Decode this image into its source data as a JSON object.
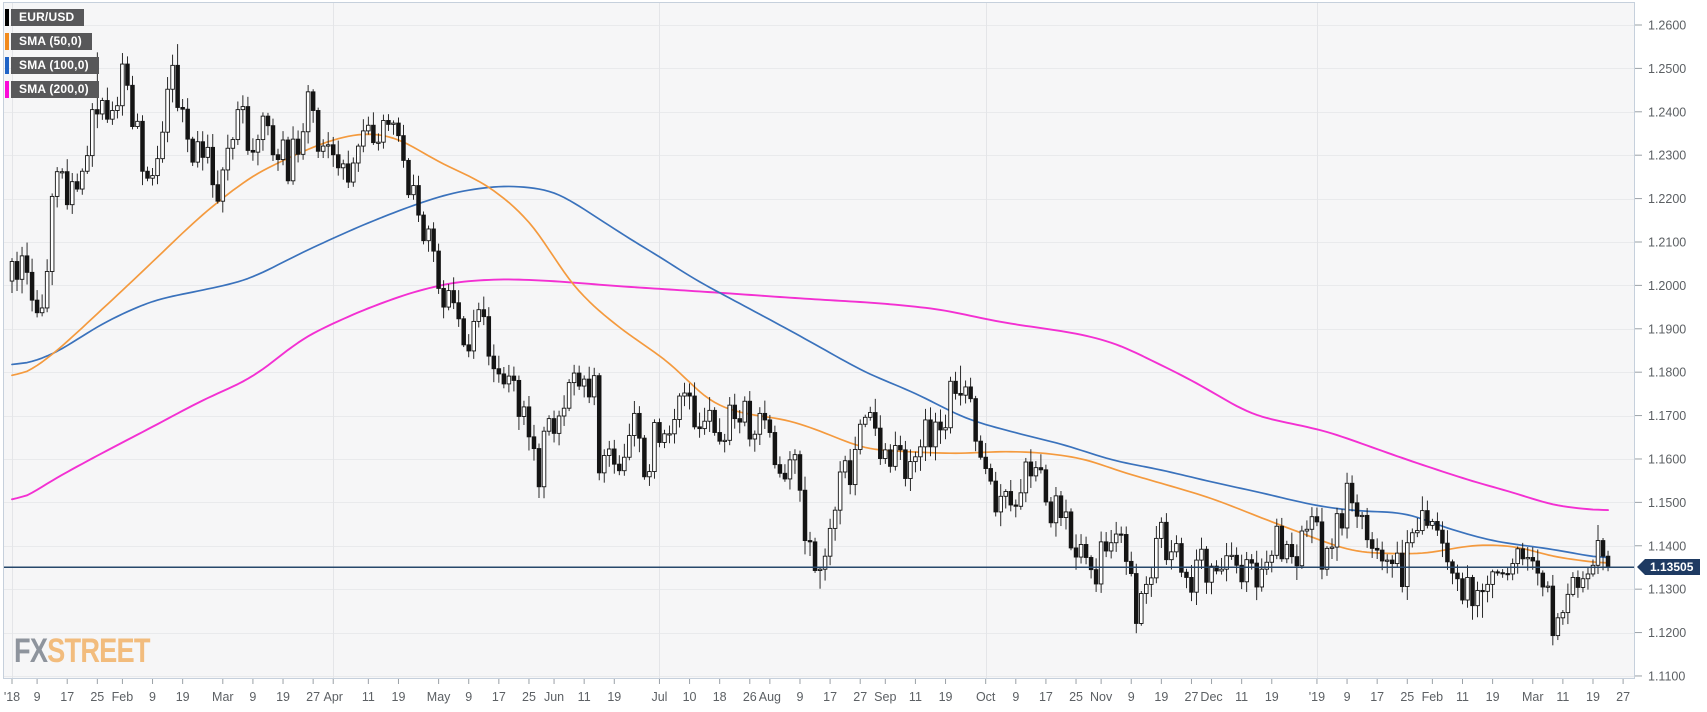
{
  "legend": {
    "items": [
      {
        "label": "EUR/USD",
        "color": "#000000"
      },
      {
        "label": "SMA (50,0)",
        "color": "#f28a1c"
      },
      {
        "label": "SMA (100,0)",
        "color": "#1f63c6"
      },
      {
        "label": "SMA (200,0)",
        "color": "#fb0bd8"
      }
    ]
  },
  "watermark": {
    "fx": "FX",
    "street": "STREET"
  },
  "price_scale": {
    "current_price_label": "1.13505",
    "ticks": [
      "1.2600",
      "1.2500",
      "1.2400",
      "1.2300",
      "1.2200",
      "1.2100",
      "1.2000",
      "1.1900",
      "1.1800",
      "1.1700",
      "1.1600",
      "1.1500",
      "1.1400",
      "1.1300",
      "1.1200",
      "1.1100"
    ]
  },
  "time_scale": {
    "labels": [
      {
        "text": "'18",
        "date": "2018-01-02",
        "gridline": true
      },
      {
        "text": "9",
        "date": "2018-01-09"
      },
      {
        "text": "17",
        "date": "2018-01-17"
      },
      {
        "text": "25",
        "date": "2018-01-25"
      },
      {
        "text": "Feb",
        "date": "2018-02-01"
      },
      {
        "text": "9",
        "date": "2018-02-09"
      },
      {
        "text": "19",
        "date": "2018-02-19"
      },
      {
        "text": "Mar",
        "date": "2018-03-01"
      },
      {
        "text": "9",
        "date": "2018-03-09"
      },
      {
        "text": "19",
        "date": "2018-03-19"
      },
      {
        "text": "27",
        "date": "2018-03-27"
      },
      {
        "text": "Apr",
        "date": "2018-04-02",
        "gridline": true
      },
      {
        "text": "11",
        "date": "2018-04-11"
      },
      {
        "text": "19",
        "date": "2018-04-19"
      },
      {
        "text": "May",
        "date": "2018-05-01"
      },
      {
        "text": "9",
        "date": "2018-05-09"
      },
      {
        "text": "17",
        "date": "2018-05-17"
      },
      {
        "text": "25",
        "date": "2018-05-25"
      },
      {
        "text": "Jun",
        "date": "2018-06-01"
      },
      {
        "text": "11",
        "date": "2018-06-11"
      },
      {
        "text": "19",
        "date": "2018-06-19"
      },
      {
        "text": "Jul",
        "date": "2018-07-02",
        "gridline": true
      },
      {
        "text": "10",
        "date": "2018-07-10"
      },
      {
        "text": "18",
        "date": "2018-07-18"
      },
      {
        "text": "26",
        "date": "2018-07-26"
      },
      {
        "text": "Aug",
        "date": "2018-08-01"
      },
      {
        "text": "9",
        "date": "2018-08-09"
      },
      {
        "text": "17",
        "date": "2018-08-17"
      },
      {
        "text": "27",
        "date": "2018-08-27"
      },
      {
        "text": "Sep",
        "date": "2018-09-03"
      },
      {
        "text": "11",
        "date": "2018-09-11"
      },
      {
        "text": "19",
        "date": "2018-09-19"
      },
      {
        "text": "Oct",
        "date": "2018-10-01",
        "gridline": true
      },
      {
        "text": "9",
        "date": "2018-10-09"
      },
      {
        "text": "17",
        "date": "2018-10-17"
      },
      {
        "text": "25",
        "date": "2018-10-25"
      },
      {
        "text": "Nov",
        "date": "2018-11-01"
      },
      {
        "text": "9",
        "date": "2018-11-09"
      },
      {
        "text": "19",
        "date": "2018-11-19"
      },
      {
        "text": "27",
        "date": "2018-11-27"
      },
      {
        "text": "Dec",
        "date": "2018-12-03"
      },
      {
        "text": "11",
        "date": "2018-12-11"
      },
      {
        "text": "19",
        "date": "2018-12-19"
      },
      {
        "text": "'19",
        "date": "2019-01-01",
        "gridline": true
      },
      {
        "text": "9",
        "date": "2019-01-09"
      },
      {
        "text": "17",
        "date": "2019-01-17"
      },
      {
        "text": "25",
        "date": "2019-01-25"
      },
      {
        "text": "Feb",
        "date": "2019-02-01"
      },
      {
        "text": "11",
        "date": "2019-02-11"
      },
      {
        "text": "19",
        "date": "2019-02-19"
      },
      {
        "text": "Mar",
        "date": "2019-03-01"
      },
      {
        "text": "11",
        "date": "2019-03-11"
      },
      {
        "text": "19",
        "date": "2019-03-19"
      },
      {
        "text": "27",
        "date": "2019-03-27"
      }
    ]
  },
  "chart_data": {
    "type": "candlestick",
    "instrument": "EUR/USD",
    "timeframe": "daily",
    "start_date": "2018-01-02",
    "end_date": "2019-03-22",
    "axis_end_date": "2019-03-27",
    "ylim": [
      1.1093,
      1.2653
    ],
    "current_price": 1.13505,
    "first_open": 1.201,
    "up_color": "#ffffff",
    "down_color": "#141414",
    "closes": [
      1.2055,
      1.2014,
      1.2068,
      1.203,
      1.1966,
      1.1937,
      1.1948,
      1.2032,
      1.2205,
      1.2262,
      1.2262,
      1.2186,
      1.2239,
      1.2222,
      1.2263,
      1.2299,
      1.2405,
      1.2395,
      1.2426,
      1.2383,
      1.2403,
      1.2414,
      1.251,
      1.2461,
      1.2366,
      1.2378,
      1.2263,
      1.2247,
      1.2253,
      1.2292,
      1.2353,
      1.2452,
      1.2507,
      1.241,
      1.2406,
      1.2337,
      1.2284,
      1.2331,
      1.2295,
      1.2318,
      1.2232,
      1.2194,
      1.2266,
      1.2316,
      1.2336,
      1.2405,
      1.2412,
      1.2311,
      1.2307,
      1.2336,
      1.239,
      1.2368,
      1.2301,
      1.229,
      1.2335,
      1.2241,
      1.2337,
      1.2302,
      1.2354,
      1.2446,
      1.2403,
      1.2309,
      1.2321,
      1.2324,
      1.2301,
      1.2271,
      1.228,
      1.2238,
      1.2282,
      1.2321,
      1.2356,
      1.2369,
      1.2329,
      1.233,
      1.238,
      1.2371,
      1.2374,
      1.2345,
      1.2288,
      1.2209,
      1.223,
      1.2162,
      1.2103,
      1.213,
      1.2079,
      1.1993,
      1.195,
      1.1988,
      1.196,
      1.1923,
      1.1863,
      1.1849,
      1.1917,
      1.1944,
      1.1928,
      1.1837,
      1.1808,
      1.1796,
      1.1773,
      1.1791,
      1.1781,
      1.1698,
      1.172,
      1.1651,
      1.1624,
      1.1536,
      1.1664,
      1.1693,
      1.1659,
      1.1699,
      1.1717,
      1.1776,
      1.1798,
      1.1768,
      1.1784,
      1.1743,
      1.1792,
      1.1568,
      1.1608,
      1.1623,
      1.1588,
      1.1573,
      1.1604,
      1.1654,
      1.1705,
      1.1648,
      1.1559,
      1.1571,
      1.1684,
      1.1638,
      1.1658,
      1.1658,
      1.1691,
      1.1745,
      1.1752,
      1.1745,
      1.1674,
      1.167,
      1.1687,
      1.1712,
      1.1661,
      1.1641,
      1.1643,
      1.1724,
      1.1693,
      1.1685,
      1.1733,
      1.1646,
      1.1657,
      1.1705,
      1.169,
      1.1661,
      1.1587,
      1.1567,
      1.1554,
      1.1598,
      1.161,
      1.1528,
      1.1412,
      1.1409,
      1.1343,
      1.1346,
      1.1376,
      1.144,
      1.1482,
      1.157,
      1.1596,
      1.1541,
      1.1622,
      1.168,
      1.1696,
      1.1707,
      1.1671,
      1.1601,
      1.1621,
      1.1583,
      1.1631,
      1.1621,
      1.1555,
      1.1594,
      1.1605,
      1.1628,
      1.169,
      1.1628,
      1.1685,
      1.1667,
      1.1672,
      1.1779,
      1.1751,
      1.1747,
      1.1766,
      1.1739,
      1.1641,
      1.1604,
      1.1578,
      1.1549,
      1.1478,
      1.1514,
      1.1525,
      1.1494,
      1.1491,
      1.1522,
      1.1593,
      1.1561,
      1.158,
      1.1575,
      1.1501,
      1.1453,
      1.1515,
      1.1465,
      1.1478,
      1.1395,
      1.1374,
      1.1403,
      1.1373,
      1.1345,
      1.1312,
      1.1409,
      1.1388,
      1.1407,
      1.1427,
      1.1426,
      1.1364,
      1.1336,
      1.1221,
      1.129,
      1.1311,
      1.1326,
      1.1417,
      1.1454,
      1.1368,
      1.1386,
      1.1405,
      1.1339,
      1.1327,
      1.1293,
      1.1367,
      1.1392,
      1.1316,
      1.1353,
      1.1342,
      1.1346,
      1.1377,
      1.1378,
      1.1355,
      1.1317,
      1.1368,
      1.136,
      1.1305,
      1.1346,
      1.1362,
      1.1378,
      1.1445,
      1.137,
      1.1403,
      1.1375,
      1.1354,
      1.1434,
      1.1438,
      1.1467,
      1.1455,
      1.1346,
      1.1394,
      1.1397,
      1.1474,
      1.1441,
      1.1544,
      1.1499,
      1.1468,
      1.147,
      1.1414,
      1.1394,
      1.139,
      1.1365,
      1.1367,
      1.1359,
      1.1383,
      1.1306,
      1.1407,
      1.143,
      1.1435,
      1.1481,
      1.1447,
      1.1456,
      1.1436,
      1.1406,
      1.1363,
      1.1337,
      1.1324,
      1.1275,
      1.1327,
      1.1262,
      1.1297,
      1.1295,
      1.1311,
      1.134,
      1.1338,
      1.1336,
      1.1335,
      1.1359,
      1.1393,
      1.137,
      1.1373,
      1.1365,
      1.1337,
      1.1305,
      1.1307,
      1.1193,
      1.1234,
      1.1246,
      1.1288,
      1.1327,
      1.1304,
      1.1324,
      1.1335,
      1.1355,
      1.1412,
      1.1376,
      1.13505
    ],
    "key_extremes": {
      "2018-01-25": {
        "high": 1.2537
      },
      "2018-02-16": {
        "high": 1.2556
      },
      "2018-05-29": {
        "low": 1.151
      },
      "2018-08-15": {
        "low": 1.1301
      },
      "2018-09-24": {
        "high": 1.1815
      },
      "2018-11-12": {
        "low": 1.1216
      },
      "2019-02-15": {
        "low": 1.1234
      },
      "2019-03-07": {
        "low": 1.1176
      },
      "2019-03-20": {
        "high": 1.1448
      }
    },
    "sma": [
      {
        "name": "SMA (200,0)",
        "color": "#f330d2",
        "width": 1.9,
        "anchors": [
          [
            "2018-01-02",
            1.1489
          ],
          [
            "2018-01-11",
            1.1545
          ],
          [
            "2018-01-26",
            1.1614
          ],
          [
            "2018-02-09",
            1.1674
          ],
          [
            "2018-02-23",
            1.1736
          ],
          [
            "2018-03-09",
            1.1787
          ],
          [
            "2018-03-23",
            1.188
          ],
          [
            "2018-04-09",
            1.1939
          ],
          [
            "2018-04-23",
            1.1982
          ],
          [
            "2018-05-04",
            1.2008
          ],
          [
            "2018-05-18",
            1.2015
          ],
          [
            "2018-06-01",
            1.201
          ],
          [
            "2018-06-20",
            1.1998
          ],
          [
            "2018-07-18",
            1.1983
          ],
          [
            "2018-08-09",
            1.197
          ],
          [
            "2018-08-31",
            1.1959
          ],
          [
            "2018-09-18",
            1.1945
          ],
          [
            "2018-10-04",
            1.1915
          ],
          [
            "2018-10-25",
            1.189
          ],
          [
            "2018-11-06",
            1.1867
          ],
          [
            "2018-11-27",
            1.1782
          ],
          [
            "2018-12-13",
            1.1701
          ],
          [
            "2019-01-03",
            1.1664
          ],
          [
            "2019-01-25",
            1.1598
          ],
          [
            "2019-02-12",
            1.1552
          ],
          [
            "2019-02-28",
            1.1513
          ],
          [
            "2019-03-06",
            1.1495
          ],
          [
            "2019-03-14",
            1.1486
          ],
          [
            "2019-03-22",
            1.148
          ]
        ]
      },
      {
        "name": "SMA (100,0)",
        "color": "#3a72bc",
        "width": 1.7,
        "anchors": [
          [
            "2018-01-02",
            1.181
          ],
          [
            "2018-01-12",
            1.1838
          ],
          [
            "2018-01-26",
            1.1913
          ],
          [
            "2018-02-09",
            1.1966
          ],
          [
            "2018-02-23",
            1.1989
          ],
          [
            "2018-03-08",
            1.2012
          ],
          [
            "2018-03-23",
            1.2077
          ],
          [
            "2018-04-09",
            1.2135
          ],
          [
            "2018-04-23",
            1.2181
          ],
          [
            "2018-05-04",
            1.2215
          ],
          [
            "2018-05-18",
            1.2231
          ],
          [
            "2018-06-01",
            1.222
          ],
          [
            "2018-06-20",
            1.2123
          ],
          [
            "2018-06-25",
            1.21
          ],
          [
            "2018-07-03",
            1.206
          ],
          [
            "2018-07-10",
            1.202
          ],
          [
            "2018-07-18",
            1.1983
          ],
          [
            "2018-08-08",
            1.189
          ],
          [
            "2018-08-28",
            1.1799
          ],
          [
            "2018-09-11",
            1.1752
          ],
          [
            "2018-09-25",
            1.1692
          ],
          [
            "2018-10-09",
            1.166
          ],
          [
            "2018-10-23",
            1.1632
          ],
          [
            "2018-11-05",
            1.1597
          ],
          [
            "2018-11-19",
            1.1575
          ],
          [
            "2018-12-03",
            1.1547
          ],
          [
            "2018-12-17",
            1.1522
          ],
          [
            "2018-12-31",
            1.1494
          ],
          [
            "2019-01-09",
            1.1482
          ],
          [
            "2019-01-17",
            1.1478
          ],
          [
            "2019-01-25",
            1.1477
          ],
          [
            "2019-02-01",
            1.1452
          ],
          [
            "2019-02-08",
            1.1433
          ],
          [
            "2019-02-20",
            1.1408
          ],
          [
            "2019-02-28",
            1.14
          ],
          [
            "2019-03-08",
            1.139
          ],
          [
            "2019-03-22",
            1.1368
          ]
        ]
      },
      {
        "name": "SMA (50,0)",
        "color": "#f49a3e",
        "width": 1.7,
        "anchors": [
          [
            "2018-01-02",
            1.1775
          ],
          [
            "2018-01-12",
            1.1838
          ],
          [
            "2018-02-05",
            1.201
          ],
          [
            "2018-02-23",
            1.2165
          ],
          [
            "2018-03-09",
            1.2255
          ],
          [
            "2018-03-27",
            1.232
          ],
          [
            "2018-04-05",
            1.2347
          ],
          [
            "2018-04-13",
            1.2352
          ],
          [
            "2018-04-23",
            1.233
          ],
          [
            "2018-04-27",
            1.2295
          ],
          [
            "2018-05-15",
            1.2231
          ],
          [
            "2018-05-28",
            1.2142
          ],
          [
            "2018-06-06",
            1.2005
          ],
          [
            "2018-06-14",
            1.194
          ],
          [
            "2018-06-21",
            1.1893
          ],
          [
            "2018-06-28",
            1.1855
          ],
          [
            "2018-07-06",
            1.1805
          ],
          [
            "2018-07-13",
            1.1735
          ],
          [
            "2018-07-24",
            1.1705
          ],
          [
            "2018-08-07",
            1.169
          ],
          [
            "2018-08-16",
            1.166
          ],
          [
            "2018-08-28",
            1.1622
          ],
          [
            "2018-09-05",
            1.1618
          ],
          [
            "2018-09-21",
            1.1612
          ],
          [
            "2018-10-05",
            1.1618
          ],
          [
            "2018-10-17",
            1.1614
          ],
          [
            "2018-10-30",
            1.1598
          ],
          [
            "2018-11-05",
            1.1577
          ],
          [
            "2018-11-19",
            1.1544
          ],
          [
            "2018-12-03",
            1.151
          ],
          [
            "2018-12-17",
            1.1464
          ],
          [
            "2018-12-31",
            1.142
          ],
          [
            "2019-01-09",
            1.139
          ],
          [
            "2019-01-15",
            1.1383
          ],
          [
            "2019-01-31",
            1.1381
          ],
          [
            "2019-02-08",
            1.1397
          ],
          [
            "2019-02-18",
            1.1404
          ],
          [
            "2019-02-28",
            1.1395
          ],
          [
            "2019-03-06",
            1.1375
          ],
          [
            "2019-03-14",
            1.1368
          ],
          [
            "2019-03-22",
            1.1356
          ]
        ]
      }
    ]
  }
}
